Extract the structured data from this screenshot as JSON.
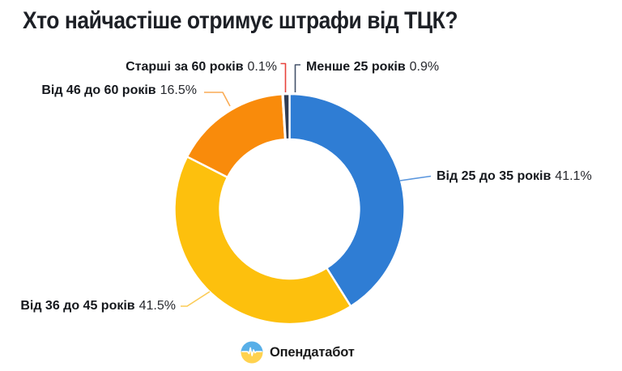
{
  "title": "Хто найчастіше отримує штрафи від ТЦК?",
  "chart_data": {
    "type": "pie",
    "subtype": "donut",
    "title": "Хто найчастіше отримує штрафи від ТЦК?",
    "units": "%",
    "start_angle_deg": -90,
    "direction": "clockwise",
    "legend_position": "callout-labels",
    "segments": [
      {
        "label": "Від 25 до 35 років",
        "value": 41.1,
        "pct_text": "41.1%",
        "color": "#2F7DD4",
        "leader_color": "#5B97DE"
      },
      {
        "label": "Від 36 до 45 років",
        "value": 41.5,
        "pct_text": "41.5%",
        "color": "#FDC00D",
        "leader_color": "#FBCB56"
      },
      {
        "label": "Від 46 до 60 років",
        "value": 16.5,
        "pct_text": "16.5%",
        "color": "#F98B0B",
        "leader_color": "#FAAC55"
      },
      {
        "label": "Старші за 60 років",
        "value": 0.1,
        "pct_text": "0.1%",
        "color": "#E0312D",
        "leader_color": "#E8433C"
      },
      {
        "label": "Менше 25 років",
        "value": 0.9,
        "pct_text": "0.9%",
        "color": "#303C52",
        "leader_color": "#45536B"
      }
    ]
  },
  "footer": {
    "brand": "Опендатабот"
  },
  "brand_colors": {
    "flag_blue": "#58AFE8",
    "flag_yellow": "#FFD24F"
  }
}
